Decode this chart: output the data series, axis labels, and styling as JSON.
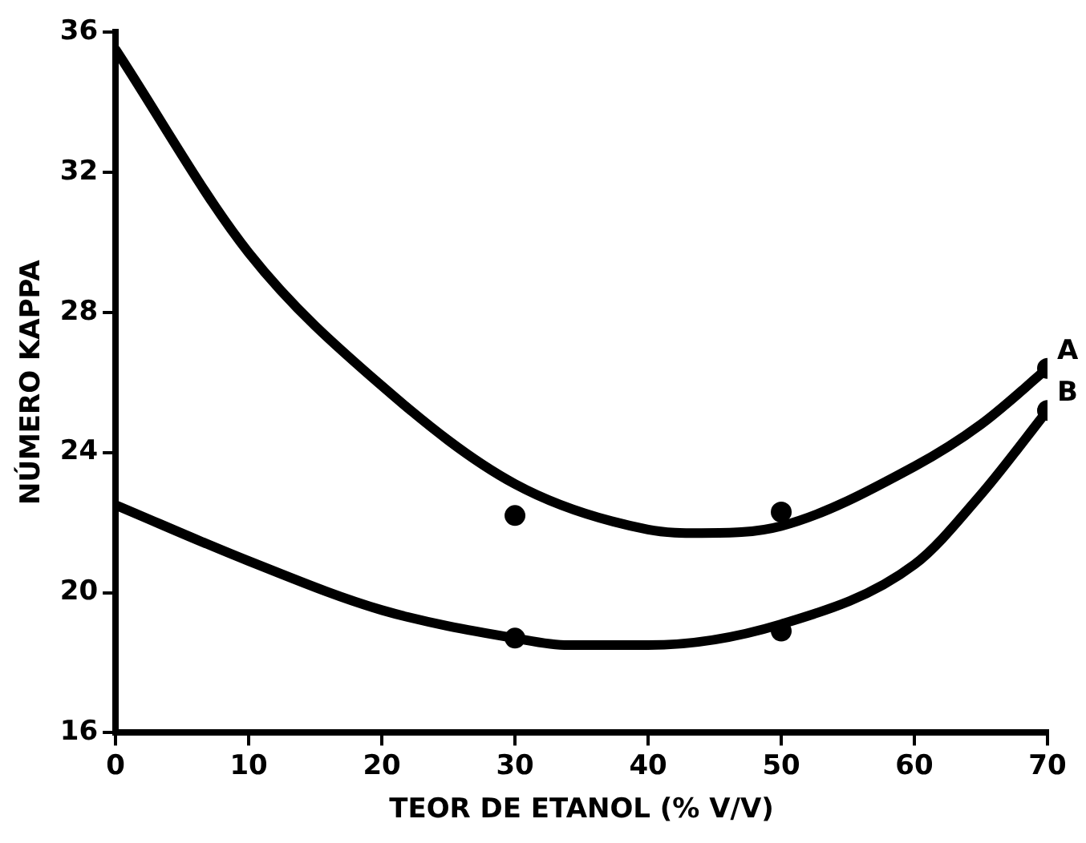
{
  "chart_data": {
    "type": "line",
    "xlabel": "TEOR DE ETANOL (% V/V)",
    "ylabel": "NÚMERO KAPPA",
    "xlim": [
      0,
      70
    ],
    "xticks": [
      0,
      10,
      20,
      30,
      40,
      50,
      60,
      70
    ],
    "ylim": [
      16,
      36
    ],
    "yticks": [
      16,
      20,
      24,
      28,
      32,
      36
    ],
    "grid": false,
    "legend": false,
    "line_style": "solid",
    "series": [
      {
        "name": "A",
        "marker": "none",
        "color": "#000000",
        "x": [
          0,
          10,
          20,
          30,
          40,
          44,
          50,
          60,
          65,
          70
        ],
        "values": [
          35.5,
          29.7,
          25.9,
          23.1,
          21.8,
          21.7,
          21.9,
          23.6,
          24.8,
          26.4
        ]
      },
      {
        "name": "B",
        "marker": "none",
        "color": "#000000",
        "x": [
          0,
          10,
          20,
          30,
          34,
          40,
          50,
          60,
          65,
          70
        ],
        "values": [
          22.5,
          20.9,
          19.5,
          18.7,
          18.5,
          18.5,
          19.1,
          20.8,
          22.8,
          25.2
        ]
      },
      {
        "type": "scatter",
        "marker": "circle",
        "color": "#000000",
        "x": [
          30,
          50,
          70
        ],
        "values": [
          22.2,
          22.3,
          26.4
        ]
      },
      {
        "type": "scatter",
        "marker": "circle",
        "color": "#000000",
        "x": [
          30,
          50,
          70
        ],
        "values": [
          18.7,
          18.9,
          25.2
        ]
      }
    ]
  }
}
